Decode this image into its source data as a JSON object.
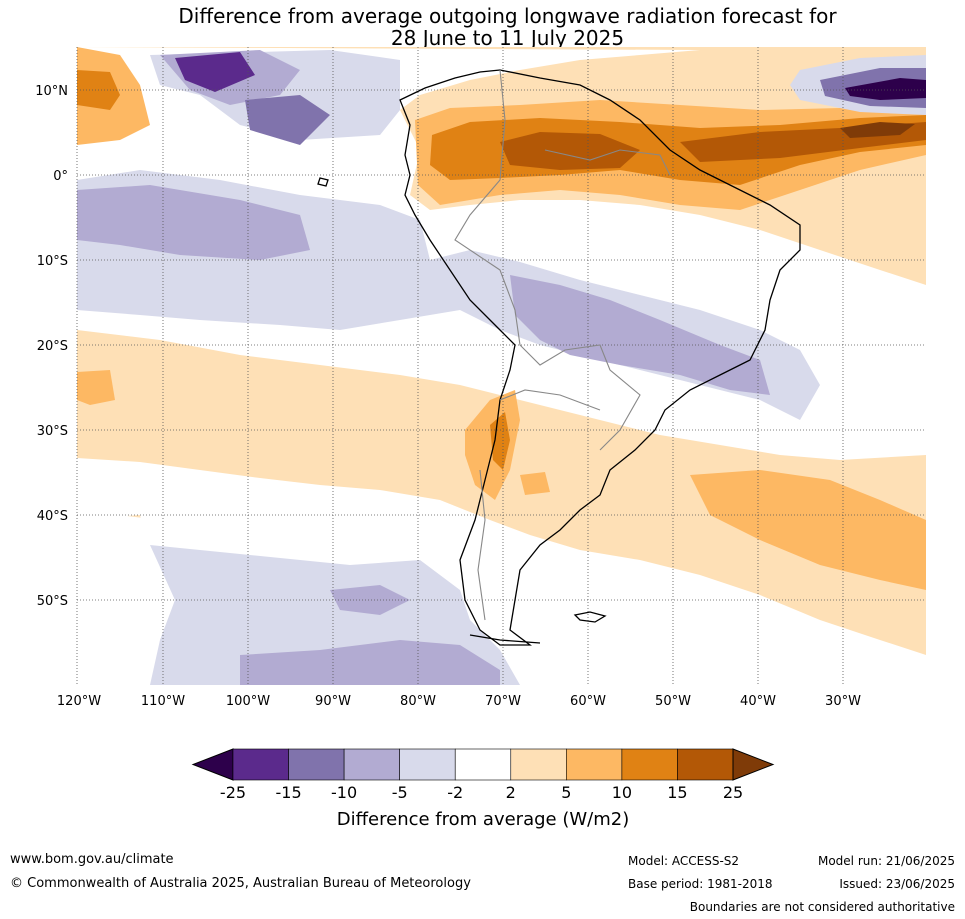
{
  "title_line1": "Difference from average outgoing longwave radiation forecast for",
  "title_line2": "28 June to 11 July 2025",
  "map": {
    "lat_labels": [
      "10°N",
      "0°",
      "10°S",
      "20°S",
      "30°S",
      "40°S",
      "50°S"
    ],
    "lon_labels": [
      "120°W",
      "110°W",
      "100°W",
      "90°W",
      "80°W",
      "70°W",
      "60°W",
      "50°W",
      "40°W",
      "30°W"
    ]
  },
  "colorbar": {
    "ticks": [
      "-25",
      "-15",
      "-10",
      "-5",
      "-2",
      "2",
      "5",
      "10",
      "15",
      "25"
    ],
    "colors": [
      "#2d004b",
      "#5b2a8c",
      "#8073ac",
      "#b2abd2",
      "#d8daeb",
      "#ffffff",
      "#fee0b6",
      "#fdb863",
      "#e08214",
      "#b35806",
      "#7f3b08"
    ],
    "title": "Difference from average (W/m2)"
  },
  "footer": {
    "url": "www.bom.gov.au/climate",
    "copyright": "© Commonwealth of Australia 2025, Australian Bureau of Meteorology",
    "model": "Model: ACCESS-S2",
    "base_period": "Base period: 1981-2018",
    "model_run": "Model run: 21/06/2025",
    "issued": "Issued: 23/06/2025",
    "disclaimer": "Boundaries are not considered authoritative"
  }
}
